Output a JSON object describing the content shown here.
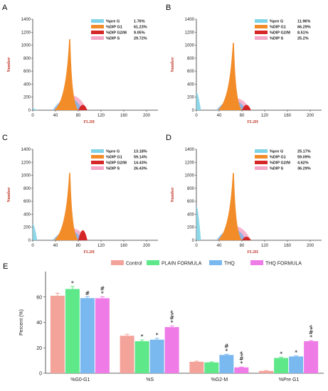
{
  "histogram_panels": [
    {
      "letter": "A",
      "ylabel": "Number",
      "xlabel": "FL2H",
      "yticks": [
        "0",
        "200",
        "400",
        "600",
        "800",
        "1000",
        "1200",
        "1400"
      ],
      "xticks": [
        "0",
        "40",
        "80",
        "120",
        "160",
        "200"
      ],
      "legend": [
        {
          "label": "%pre G",
          "value": "1.76%",
          "color": "#7fd3e6"
        },
        {
          "label": "%DIP G1",
          "value": "61.23%",
          "color": "#f28c28"
        },
        {
          "label": "%DIP G2/M",
          "value": "9.05%",
          "color": "#d62728"
        },
        {
          "label": "%DIP S",
          "value": "29.72%",
          "color": "#f4a7c7"
        }
      ]
    },
    {
      "letter": "B",
      "ylabel": "Number",
      "xlabel": "FL2H",
      "yticks": [
        "0",
        "200",
        "400",
        "600",
        "800",
        "1000",
        "1200",
        "1400"
      ],
      "xticks": [
        "0",
        "40",
        "80",
        "120",
        "160",
        "200"
      ],
      "legend": [
        {
          "label": "%pre G",
          "value": "11.96%",
          "color": "#7fd3e6"
        },
        {
          "label": "%DIP G1",
          "value": "66.29%",
          "color": "#f28c28"
        },
        {
          "label": "%DIP G2/M",
          "value": "8.51%",
          "color": "#d62728"
        },
        {
          "label": "%DIP S",
          "value": "25.2%",
          "color": "#f4a7c7"
        }
      ]
    },
    {
      "letter": "C",
      "ylabel": "Number",
      "xlabel": "FL2H",
      "yticks": [
        "0",
        "200",
        "400",
        "600",
        "800",
        "1000",
        "1200",
        "1400"
      ],
      "xticks": [
        "0",
        "40",
        "80",
        "120",
        "160",
        "200"
      ],
      "legend": [
        {
          "label": "%pre G",
          "value": "13.18%",
          "color": "#7fd3e6"
        },
        {
          "label": "%DIP G1",
          "value": "59.14%",
          "color": "#f28c28"
        },
        {
          "label": "%DIP G2/M",
          "value": "14.43%",
          "color": "#d62728"
        },
        {
          "label": "%DIP S",
          "value": "26.43%",
          "color": "#f4a7c7"
        }
      ]
    },
    {
      "letter": "D",
      "ylabel": "Number",
      "xlabel": "FL2H",
      "yticks": [
        "0",
        "200",
        "400",
        "600",
        "800",
        "1000",
        "1200",
        "1400"
      ],
      "xticks": [
        "0",
        "40",
        "80",
        "120",
        "160",
        "200"
      ],
      "legend": [
        {
          "label": "%pre G",
          "value": "25.17%",
          "color": "#7fd3e6"
        },
        {
          "label": "%DIP G1",
          "value": "59.09%",
          "color": "#f28c28"
        },
        {
          "label": "%DIP G2/M",
          "value": "4.62%",
          "color": "#d62728"
        },
        {
          "label": "%DIP S",
          "value": "36.29%",
          "color": "#f4a7c7"
        }
      ]
    }
  ],
  "chart_data": {
    "letter": "E",
    "type": "bar",
    "ylabel": "Percent (%)",
    "xlabel": "",
    "ylim": [
      0,
      80
    ],
    "yticks": [
      "0",
      "20",
      "40",
      "60"
    ],
    "categories": [
      "%G0-G1",
      "%S",
      "%G2-M",
      "%Pre G1"
    ],
    "legend_position": "top",
    "series": [
      {
        "name": "Control",
        "color": "#f4a39a",
        "values": [
          61,
          29.5,
          9,
          1.8
        ],
        "errors": [
          2,
          1.2,
          0.5,
          0.3
        ],
        "marks": [
          "",
          "",
          "",
          ""
        ]
      },
      {
        "name": "PLAIN FORMULA",
        "color": "#5ee88a",
        "values": [
          66.3,
          25.2,
          8.5,
          12
        ],
        "errors": [
          2,
          1,
          0.4,
          0.6
        ],
        "marks": [
          "*",
          "*",
          "",
          "*"
        ]
      },
      {
        "name": "THQ",
        "color": "#7ab8f0",
        "values": [
          59.1,
          26.4,
          14.4,
          13.2
        ],
        "errors": [
          1.2,
          1,
          0.5,
          0.5
        ],
        "marks": [
          "#",
          "*",
          "#\n*",
          "*"
        ]
      },
      {
        "name": "THQ FORMULA",
        "color": "#ef7be6",
        "values": [
          59,
          36.3,
          4.6,
          25.2
        ],
        "errors": [
          1.2,
          1,
          0.3,
          0.5
        ],
        "marks": [
          "#\n*",
          "$\n#\n*",
          "$\n#\n*",
          "$\n#\n*"
        ]
      }
    ]
  }
}
